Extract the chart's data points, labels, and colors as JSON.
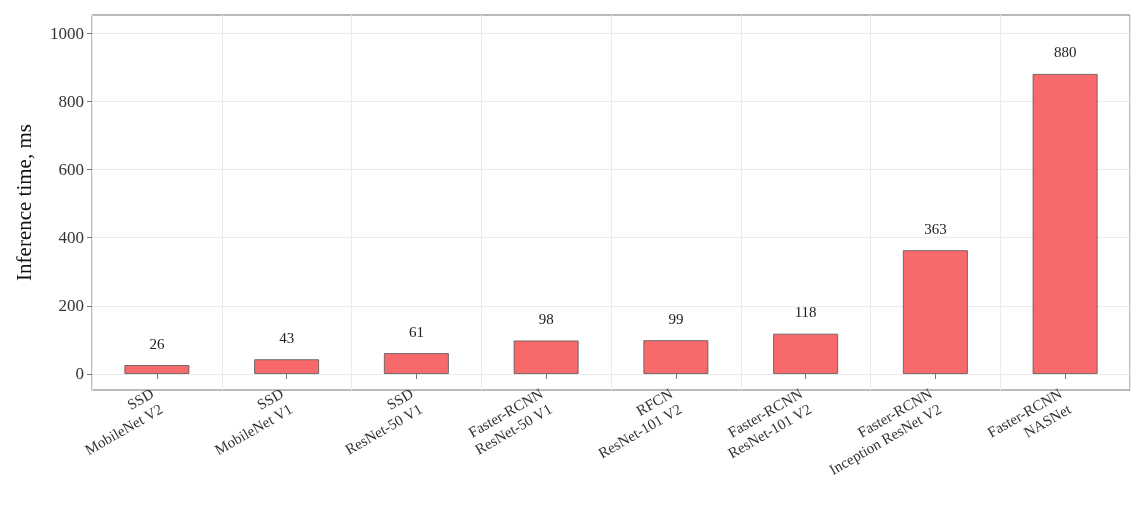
{
  "chart_data": {
    "type": "bar",
    "ylabel": "Inference time, ms",
    "categories": [
      "SSD\nMobileNet V2",
      "SSD\nMobileNet V1",
      "SSD\nResNet-50 V1",
      "Faster-RCNN\nResNet-50 V1",
      "RFCN\nResNet-101 V2",
      "Faster-RCNN\nResNet-101 V2",
      "Faster-RCNN\nInception ResNet V2",
      "Faster-RCNN\nNASNet"
    ],
    "values": [
      26,
      43,
      61,
      98,
      99,
      118,
      363,
      880
    ],
    "color": "#f8696b",
    "ylim": [
      -47,
      1053
    ],
    "yticks": [
      0,
      200,
      400,
      600,
      800,
      1000
    ],
    "grid": true,
    "data_labels": true
  }
}
